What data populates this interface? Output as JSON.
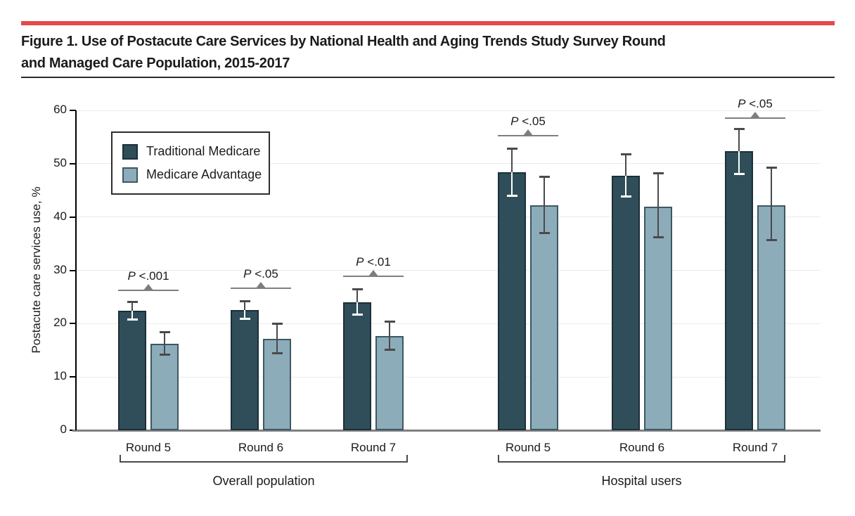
{
  "figure": {
    "title_line1": "Figure 1. Use of Postacute Care Services by National Health and Aging Trends Study Survey Round",
    "title_line2": "and Managed Care Population, 2015-2017",
    "accent_color": "#e4494b"
  },
  "chart_data": {
    "type": "bar",
    "title": "Figure 1. Use of Postacute Care Services by National Health and Aging Trends Study Survey Round and Managed Care Population, 2015-2017",
    "xlabel": "",
    "ylabel": "Postacute care services use, %",
    "ylim": [
      0,
      60
    ],
    "yticks": [
      0,
      10,
      20,
      30,
      40,
      50,
      60
    ],
    "grid": "horizontal",
    "legend_position": "upper-left-inside",
    "series": [
      {
        "name": "Traditional Medicare",
        "color": "#2F4E5A",
        "border": "#1C2F38"
      },
      {
        "name": "Medicare Advantage",
        "color": "#8DACBA",
        "border": "#3C5862"
      }
    ],
    "groups": [
      {
        "label": "Overall population",
        "rounds": [
          {
            "label": "Round 5",
            "p_label": "P <.001",
            "bracket_height_pct": 26.3,
            "bars": [
              {
                "series": "Traditional Medicare",
                "value": 22.4,
                "ci_low": 20.9,
                "ci_high": 24.1
              },
              {
                "series": "Medicare Advantage",
                "value": 16.2,
                "ci_low": 14.2,
                "ci_high": 18.5
              }
            ]
          },
          {
            "label": "Round 6",
            "p_label": "P <.05",
            "bracket_height_pct": 26.6,
            "bars": [
              {
                "series": "Traditional Medicare",
                "value": 22.6,
                "ci_low": 21.0,
                "ci_high": 24.3
              },
              {
                "series": "Medicare Advantage",
                "value": 17.1,
                "ci_low": 14.5,
                "ci_high": 20.0
              }
            ]
          },
          {
            "label": "Round 7",
            "p_label": "P <.01",
            "bracket_height_pct": 28.9,
            "bars": [
              {
                "series": "Traditional Medicare",
                "value": 24.0,
                "ci_low": 21.7,
                "ci_high": 26.5
              },
              {
                "series": "Medicare Advantage",
                "value": 17.7,
                "ci_low": 15.2,
                "ci_high": 20.4
              }
            ]
          }
        ]
      },
      {
        "label": "Hospital users",
        "rounds": [
          {
            "label": "Round 5",
            "p_label": "P <.05",
            "bracket_height_pct": 55.3,
            "bars": [
              {
                "series": "Traditional Medicare",
                "value": 48.4,
                "ci_low": 44.0,
                "ci_high": 52.9
              },
              {
                "series": "Medicare Advantage",
                "value": 42.2,
                "ci_low": 37.0,
                "ci_high": 47.6
              }
            ]
          },
          {
            "label": "Round 6",
            "p_label": null,
            "bracket_height_pct": null,
            "bars": [
              {
                "series": "Traditional Medicare",
                "value": 47.8,
                "ci_low": 43.9,
                "ci_high": 51.8
              },
              {
                "series": "Medicare Advantage",
                "value": 42.0,
                "ci_low": 36.3,
                "ci_high": 48.2
              }
            ]
          },
          {
            "label": "Round 7",
            "p_label": "P <.05",
            "bracket_height_pct": 58.6,
            "bars": [
              {
                "series": "Traditional Medicare",
                "value": 52.3,
                "ci_low": 48.1,
                "ci_high": 56.6
              },
              {
                "series": "Medicare Advantage",
                "value": 42.2,
                "ci_low": 35.8,
                "ci_high": 49.3
              }
            ]
          }
        ]
      }
    ],
    "colors": {
      "grid": "#eaeaea",
      "baseline": "#7f7f7f",
      "axis": "#000000",
      "error_dark": "#4a4a4a",
      "error_on_dark_bar": "#ffffff",
      "bracket": "#7f7f7f",
      "triangle": "#7d7d7d",
      "text": "#1b1b1b"
    }
  }
}
